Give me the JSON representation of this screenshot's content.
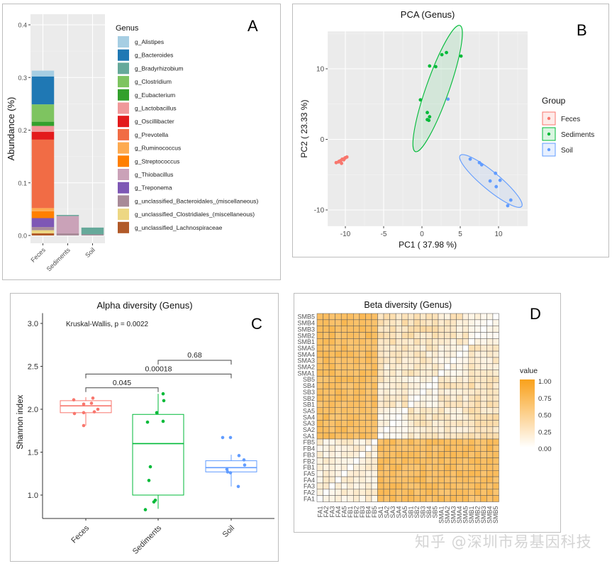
{
  "panels": {
    "A": {
      "label": "A"
    },
    "B": {
      "label": "B"
    },
    "C": {
      "label": "C"
    },
    "D": {
      "label": "D"
    }
  },
  "watermark": "知乎 @深圳市易基因科技",
  "chart_data": [
    {
      "id": "A",
      "type": "bar",
      "stacked": true,
      "title": "",
      "xlabel": "",
      "ylabel": "Abundance (%)",
      "ylim": [
        0,
        0.42
      ],
      "yticks": [
        0.0,
        0.1,
        0.2,
        0.3,
        0.4
      ],
      "ytick_labels": [
        "0.0",
        "0.1",
        "0.2",
        "0.3",
        "0.4"
      ],
      "categories": [
        "Feces",
        "Sediments",
        "Soil"
      ],
      "legend_title": "Genus",
      "legend_position": "right",
      "grid": true,
      "series": [
        {
          "name": "g_Alistipes",
          "color": "#A6CEE3",
          "values": [
            0.011,
            0.0,
            0.0
          ]
        },
        {
          "name": "g_Bacteroides",
          "color": "#1F78B4",
          "values": [
            0.053,
            0.0,
            0.0
          ]
        },
        {
          "name": "g_Bradyrhizobium",
          "color": "#66A99A",
          "values": [
            0.0,
            0.001,
            0.0
          ]
        },
        {
          "name": "g_Clostridium",
          "color": "#7EC460",
          "values": [
            0.033,
            0.0,
            0.0
          ]
        },
        {
          "name": "g_Eubacterium",
          "color": "#33A02C",
          "values": [
            0.008,
            0.0,
            0.0
          ]
        },
        {
          "name": "g_Lactobacillus",
          "color": "#F0989A",
          "values": [
            0.011,
            0.0,
            0.0
          ]
        },
        {
          "name": "g_Oscillibacter",
          "color": "#E31A1C",
          "values": [
            0.015,
            0.0,
            0.0
          ]
        },
        {
          "name": "g_Prevotella",
          "color": "#F16C45",
          "values": [
            0.13,
            0.0,
            0.0
          ]
        },
        {
          "name": "g_Ruminococcus",
          "color": "#FDAA50",
          "values": [
            0.006,
            0.0,
            0.0
          ]
        },
        {
          "name": "g_Streptococcus",
          "color": "#FF7F00",
          "values": [
            0.013,
            0.0,
            0.0
          ]
        },
        {
          "name": "g_Thiobacillus",
          "color": "#CAA2B8",
          "values": [
            0.0,
            0.033,
            0.0
          ]
        },
        {
          "name": "g_Treponema",
          "color": "#7E57B5",
          "values": [
            0.017,
            0.0,
            0.0
          ]
        },
        {
          "name": "g_unclassified_Bacteroidales_(miscellaneous)",
          "color": "#A88A98",
          "values": [
            0.006,
            0.004,
            0.002
          ]
        },
        {
          "name": "g_unclassified_Clostridiales_(miscellaneous)",
          "color": "#EDD783",
          "values": [
            0.006,
            0.0,
            0.0
          ]
        },
        {
          "name": "g_unclassified_Lachnospiraceae",
          "color": "#B15928",
          "values": [
            0.004,
            0.0,
            0.0
          ]
        }
      ],
      "extra_segments": [
        {
          "category": "Sediments",
          "name": "g_Bradyrhizobium",
          "note": "thin top band"
        },
        {
          "category": "Soil",
          "name": "g_Bradyrhizobium",
          "value": 0.013
        }
      ]
    },
    {
      "id": "B",
      "type": "scatter",
      "title": "PCA (Genus)",
      "xlabel": "PC1 ( 37.98 %)",
      "ylabel": "PC2 ( 23.33 %)",
      "xlim": [
        -12.5,
        14
      ],
      "ylim": [
        -12.5,
        15
      ],
      "xticks": [
        -10,
        -5,
        0,
        5,
        10
      ],
      "yticks": [
        -10,
        0,
        10
      ],
      "grid": true,
      "legend_title": "Group",
      "legend_position": "right",
      "series": [
        {
          "name": "Feces",
          "color": "#F8766D",
          "points": [
            [
              -11.2,
              -3.3
            ],
            [
              -10.9,
              -3.2
            ],
            [
              -10.6,
              -3.0
            ],
            [
              -10.4,
              -2.8
            ],
            [
              -10.2,
              -2.9
            ],
            [
              -10.0,
              -2.6
            ],
            [
              -9.8,
              -2.5
            ],
            [
              -10.5,
              -3.4
            ],
            [
              -10.8,
              -3.1
            ],
            [
              -10.1,
              -2.7
            ]
          ]
        },
        {
          "name": "Sediments",
          "color": "#00BA38",
          "points": [
            [
              -0.2,
              5.6
            ],
            [
              1.0,
              10.4
            ],
            [
              1.8,
              10.3
            ],
            [
              2.6,
              12.0
            ],
            [
              3.2,
              12.3
            ],
            [
              5.1,
              11.8
            ],
            [
              0.7,
              3.8
            ],
            [
              1.0,
              3.2
            ],
            [
              0.7,
              2.8
            ],
            [
              0.9,
              2.7
            ]
          ]
        },
        {
          "name": "Soil",
          "color": "#619CFF",
          "points": [
            [
              3.4,
              5.7
            ],
            [
              6.3,
              -2.8
            ],
            [
              7.5,
              -3.3
            ],
            [
              7.8,
              -3.6
            ],
            [
              8.9,
              -5.9
            ],
            [
              9.6,
              -4.8
            ],
            [
              9.7,
              -6.7
            ],
            [
              10.2,
              -5.8
            ],
            [
              11.2,
              -9.4
            ],
            [
              11.6,
              -8.6
            ]
          ]
        }
      ],
      "ellipses": [
        {
          "group": "Sediments",
          "center": [
            2.05,
            7.2
          ],
          "semi_major": 9.4,
          "semi_minor": 1.55,
          "angle_deg": 72
        },
        {
          "group": "Soil",
          "center": [
            9.0,
            -5.9
          ],
          "semi_major": 5.4,
          "semi_minor": 1.2,
          "angle_deg": -42
        }
      ]
    },
    {
      "id": "C",
      "type": "box",
      "title": "Alpha diversity (Genus)",
      "xlabel": "",
      "ylabel": "Shannon index",
      "ylim": [
        0.72,
        3.1
      ],
      "yticks": [
        1.0,
        1.5,
        2.0,
        2.5,
        3.0
      ],
      "ytick_labels": [
        "1.0",
        "1.5",
        "2.0",
        "2.5",
        "3.0"
      ],
      "categories": [
        "Feces",
        "Sediments",
        "Soil"
      ],
      "annotation": "Kruskal-Wallis, p = 0.0022",
      "boxes": [
        {
          "name": "Feces",
          "color": "#F8766D",
          "q1": 1.96,
          "median": 2.04,
          "q3": 2.1,
          "whisker_low": 1.81,
          "whisker_high": 2.14,
          "points": [
            1.81,
            1.95,
            1.96,
            1.97,
            2.0,
            2.06,
            2.07,
            2.11,
            2.13
          ]
        },
        {
          "name": "Sediments",
          "color": "#00BA38",
          "q1": 1.0,
          "median": 1.6,
          "q3": 1.94,
          "whisker_low": 0.84,
          "whisker_high": 2.18,
          "points": [
            0.83,
            0.92,
            0.94,
            1.17,
            1.33,
            1.85,
            1.86,
            1.96,
            2.1,
            2.18
          ]
        },
        {
          "name": "Soil",
          "color": "#619CFF",
          "q1": 1.27,
          "median": 1.32,
          "q3": 1.4,
          "whisker_low": 1.1,
          "whisker_high": 1.47,
          "points": [
            1.1,
            1.26,
            1.27,
            1.3,
            1.35,
            1.41,
            1.46,
            1.67,
            1.67
          ]
        }
      ],
      "comparisons": [
        {
          "groups": [
            "Feces",
            "Sediments"
          ],
          "p": "0.045",
          "y": 2.25
        },
        {
          "groups": [
            "Feces",
            "Soil"
          ],
          "p": "0.00018",
          "y": 2.41
        },
        {
          "groups": [
            "Sediments",
            "Soil"
          ],
          "p": "0.68",
          "y": 2.57
        }
      ]
    },
    {
      "id": "D",
      "type": "heatmap",
      "title": "Beta diversity (Genus)",
      "legend_title": "value",
      "legend_position": "right",
      "color_low": "#FFFFFF",
      "color_high": "#F9A11B",
      "value_range": [
        0,
        1
      ],
      "legend_ticks": [
        "1.00",
        "0.75",
        "0.50",
        "0.25",
        "0.00"
      ],
      "labels": [
        "FA1",
        "FA2",
        "FA3",
        "FA4",
        "FA5",
        "FB1",
        "FB2",
        "FB3",
        "FB4",
        "FB5",
        "SA1",
        "SA2",
        "SA3",
        "SA4",
        "SA5",
        "SB1",
        "SB2",
        "SB3",
        "SB4",
        "SB5",
        "SMA1",
        "SMA2",
        "SMA3",
        "SMA4",
        "SMA5",
        "SMB1",
        "SMB2",
        "SMB3",
        "SMB4",
        "SMB5"
      ],
      "block_values": {
        "within_feces": 0.15,
        "feces_vs_other": 0.72,
        "within_soil_sediment": 0.18,
        "diagonal": 0.0
      }
    }
  ]
}
